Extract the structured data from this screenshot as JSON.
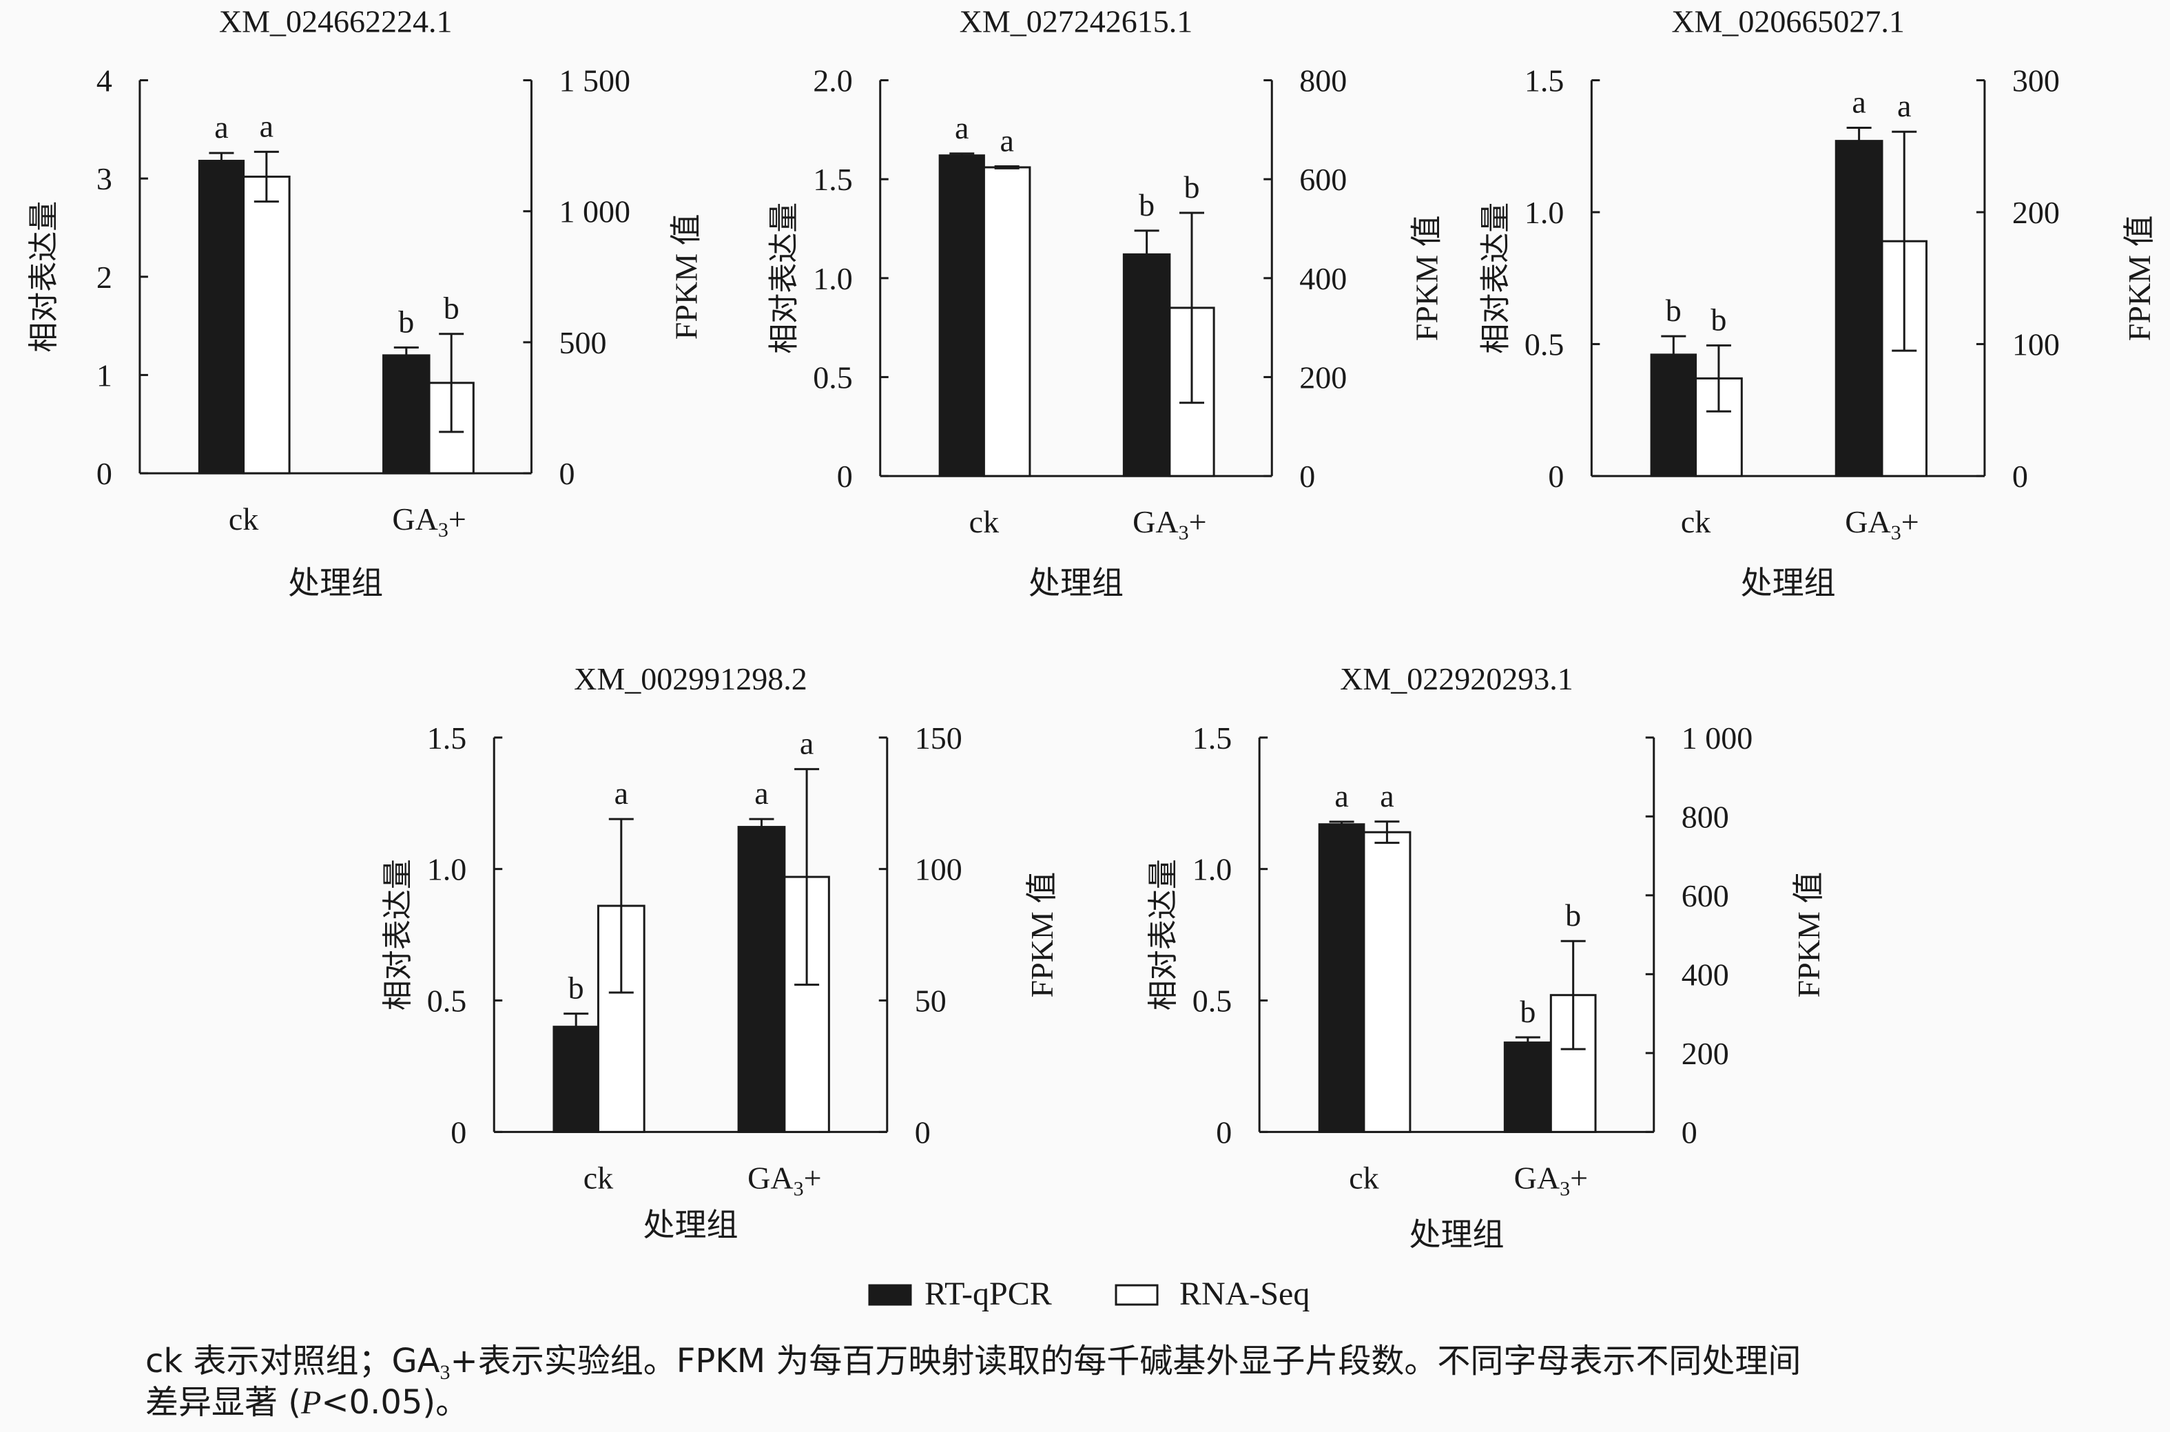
{
  "chart_data": [
    {
      "type": "bar",
      "title": "XM_024662224.1",
      "categories": [
        [
          "ck"
        ],
        [
          "GA",
          "3",
          "+"
        ]
      ],
      "xlabel": "处理组",
      "ylabel": "相对表达量",
      "y2label": "FPKM 值",
      "ylim": [
        0,
        4
      ],
      "yticks": [
        "0",
        "1",
        "2",
        "3",
        "4"
      ],
      "y2lim": [
        0,
        1500
      ],
      "y2ticks": [
        "0",
        "500",
        "1 000",
        "1 500"
      ],
      "series": [
        {
          "name": "RT-qPCR",
          "axis": "left",
          "values": [
            3.18,
            1.2
          ],
          "errors": [
            0.08,
            0.08
          ],
          "letters": [
            "a",
            "b"
          ]
        },
        {
          "name": "RNA-Seq",
          "axis": "right",
          "values": [
            1132,
            345
          ],
          "errors": [
            95,
            187
          ],
          "letters": [
            "a",
            "b"
          ]
        }
      ]
    },
    {
      "type": "bar",
      "title": "XM_027242615.1",
      "categories": [
        [
          "ck"
        ],
        [
          "GA",
          "3",
          "+"
        ]
      ],
      "xlabel": "处理组",
      "ylabel": "相对表达量",
      "y2label": "FPKM 值",
      "ylim": [
        0,
        2.0
      ],
      "yticks": [
        "0",
        "0.5",
        "1.0",
        "1.5",
        "2.0"
      ],
      "y2lim": [
        0,
        800
      ],
      "y2ticks": [
        "0",
        "200",
        "400",
        "600",
        "800"
      ],
      "series": [
        {
          "name": "RT-qPCR",
          "axis": "left",
          "values": [
            1.62,
            1.12
          ],
          "errors": [
            0.01,
            0.12
          ],
          "letters": [
            "a",
            "b"
          ]
        },
        {
          "name": "RNA-Seq",
          "axis": "right",
          "values": [
            624,
            340
          ],
          "errors": [
            2,
            192
          ],
          "letters": [
            "a",
            "b"
          ]
        }
      ]
    },
    {
      "type": "bar",
      "title": "XM_020665027.1",
      "categories": [
        [
          "ck"
        ],
        [
          "GA",
          "3",
          "+"
        ]
      ],
      "xlabel": "处理组",
      "ylabel": "相对表达量",
      "y2label": "FPKM 值",
      "ylim": [
        0,
        1.5
      ],
      "yticks": [
        "0",
        "0.5",
        "1.0",
        "1.5"
      ],
      "y2lim": [
        0,
        300
      ],
      "y2ticks": [
        "0",
        "100",
        "200",
        "300"
      ],
      "series": [
        {
          "name": "RT-qPCR",
          "axis": "left",
          "values": [
            0.46,
            1.27
          ],
          "errors": [
            0.07,
            0.05
          ],
          "letters": [
            "b",
            "a"
          ]
        },
        {
          "name": "RNA-Seq",
          "axis": "right",
          "values": [
            74,
            178
          ],
          "errors": [
            25,
            83
          ],
          "letters": [
            "b",
            "a"
          ]
        }
      ]
    },
    {
      "type": "bar",
      "title": "XM_002991298.2",
      "categories": [
        [
          "ck"
        ],
        [
          "GA",
          "3",
          "+"
        ]
      ],
      "xlabel": "处理组",
      "ylabel": "相对表达量",
      "y2label": "FPKM 值",
      "ylim": [
        0,
        1.5
      ],
      "yticks": [
        "0",
        "0.5",
        "1.0",
        "1.5"
      ],
      "y2lim": [
        0,
        150
      ],
      "y2ticks": [
        "0",
        "50",
        "100",
        "150"
      ],
      "series": [
        {
          "name": "RT-qPCR",
          "axis": "left",
          "values": [
            0.4,
            1.16
          ],
          "errors": [
            0.05,
            0.03
          ],
          "letters": [
            "b",
            "a"
          ]
        },
        {
          "name": "RNA-Seq",
          "axis": "right",
          "values": [
            86,
            97
          ],
          "errors": [
            33,
            41
          ],
          "letters": [
            "a",
            "a"
          ]
        }
      ]
    },
    {
      "type": "bar",
      "title": "XM_022920293.1",
      "categories": [
        [
          "ck"
        ],
        [
          "GA",
          "3",
          "+"
        ]
      ],
      "xlabel": "处理组",
      "ylabel": "相对表达量",
      "y2label": "FPKM 值",
      "ylim": [
        0,
        1.5
      ],
      "yticks": [
        "0",
        "0.5",
        "1.0",
        "1.5"
      ],
      "y2lim": [
        0,
        1000
      ],
      "y2ticks": [
        "0",
        "200",
        "400",
        "600",
        "800",
        "1 000"
      ],
      "series": [
        {
          "name": "RT-qPCR",
          "axis": "left",
          "values": [
            1.17,
            0.34
          ],
          "errors": [
            0.01,
            0.02
          ],
          "letters": [
            "a",
            "b"
          ]
        },
        {
          "name": "RNA-Seq",
          "axis": "right",
          "values": [
            760,
            347
          ],
          "errors": [
            27,
            137
          ],
          "letters": [
            "a",
            "b"
          ]
        }
      ]
    }
  ],
  "legend": {
    "placement": "bottom-center",
    "items": [
      {
        "label": "RT-qPCR",
        "color": "#1a1a1a"
      },
      {
        "label": "RNA-Seq",
        "color": "#ffffff"
      }
    ]
  },
  "caption": {
    "line1": [
      "ck 表示对照组；GA",
      "3",
      "+表示实验组。FPKM 为每百万映射读取的每千碱基外显子片段数。不同字母表示不同处理间"
    ],
    "line2": [
      "差异显著 (",
      "P",
      "<0.05)。"
    ]
  }
}
